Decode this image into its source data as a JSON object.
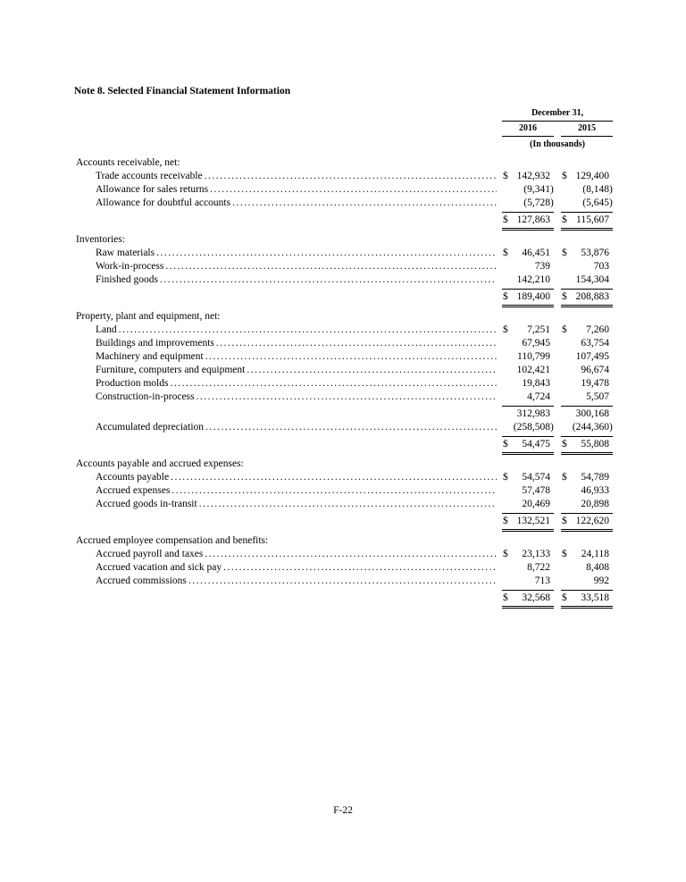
{
  "page": {
    "title": "Note 8. Selected Financial Statement Information",
    "footer": "F-22"
  },
  "table": {
    "header": {
      "date_label": "December 31,",
      "years": [
        "2016",
        "2015"
      ],
      "units": "(In thousands)"
    },
    "sections": [
      {
        "heading": "Accounts receivable, net:",
        "rows": [
          {
            "type": "item",
            "label": "Trade accounts receivable",
            "dollar": true,
            "values": [
              "142,932",
              "129,400"
            ]
          },
          {
            "type": "item",
            "label": "Allowance for sales returns",
            "values": [
              "(9,341)",
              "(8,148)"
            ]
          },
          {
            "type": "item",
            "label": "Allowance for doubtful accounts",
            "values": [
              "(5,728)",
              "(5,645)"
            ]
          },
          {
            "type": "total",
            "dollar": true,
            "values": [
              "127,863",
              "115,607"
            ]
          }
        ]
      },
      {
        "heading": "Inventories:",
        "rows": [
          {
            "type": "item",
            "label": "Raw materials",
            "dollar": true,
            "values": [
              "46,451",
              "53,876"
            ]
          },
          {
            "type": "item",
            "label": "Work-in-process",
            "values": [
              "739",
              "703"
            ]
          },
          {
            "type": "item",
            "label": "Finished goods",
            "values": [
              "142,210",
              "154,304"
            ]
          },
          {
            "type": "total",
            "dollar": true,
            "values": [
              "189,400",
              "208,883"
            ]
          }
        ]
      },
      {
        "heading": "Property, plant and equipment, net:",
        "rows": [
          {
            "type": "item",
            "label": "Land",
            "dollar": true,
            "values": [
              "7,251",
              "7,260"
            ]
          },
          {
            "type": "item",
            "label": "Buildings and improvements",
            "values": [
              "67,945",
              "63,754"
            ]
          },
          {
            "type": "item",
            "label": "Machinery and equipment",
            "values": [
              "110,799",
              "107,495"
            ]
          },
          {
            "type": "item",
            "label": "Furniture, computers and equipment",
            "values": [
              "102,421",
              "96,674"
            ]
          },
          {
            "type": "item",
            "label": "Production molds",
            "values": [
              "19,843",
              "19,478"
            ]
          },
          {
            "type": "item",
            "label": "Construction-in-process",
            "values": [
              "4,724",
              "5,507"
            ]
          },
          {
            "type": "subtotal",
            "values": [
              "312,983",
              "300,168"
            ]
          },
          {
            "type": "item",
            "label": "Accumulated depreciation",
            "values": [
              "(258,508)",
              "(244,360)"
            ]
          },
          {
            "type": "total",
            "dollar": true,
            "values": [
              "54,475",
              "55,808"
            ]
          }
        ]
      },
      {
        "heading": "Accounts payable and accrued expenses:",
        "rows": [
          {
            "type": "item",
            "label": "Accounts payable",
            "dollar": true,
            "values": [
              "54,574",
              "54,789"
            ]
          },
          {
            "type": "item",
            "label": "Accrued expenses",
            "values": [
              "57,478",
              "46,933"
            ]
          },
          {
            "type": "item",
            "label": "Accrued goods in-transit",
            "values": [
              "20,469",
              "20,898"
            ]
          },
          {
            "type": "total",
            "dollar": true,
            "values": [
              "132,521",
              "122,620"
            ]
          }
        ]
      },
      {
        "heading": "Accrued employee compensation and benefits:",
        "rows": [
          {
            "type": "item",
            "label": "Accrued payroll and taxes",
            "dollar": true,
            "values": [
              "23,133",
              "24,118"
            ]
          },
          {
            "type": "item",
            "label": "Accrued vacation and sick pay",
            "values": [
              "8,722",
              "8,408"
            ]
          },
          {
            "type": "item",
            "label": "Accrued commissions",
            "values": [
              "713",
              "992"
            ]
          },
          {
            "type": "total",
            "dollar": true,
            "values": [
              "32,568",
              "33,518"
            ]
          }
        ]
      }
    ]
  }
}
